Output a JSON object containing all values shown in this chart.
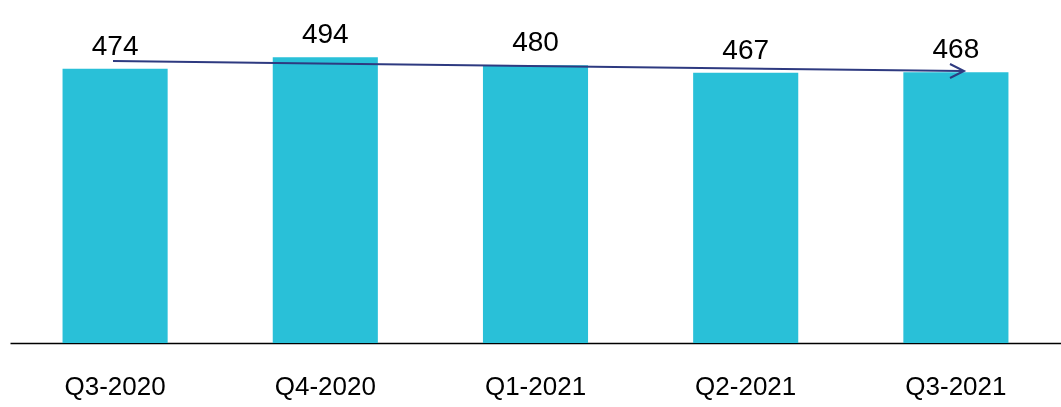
{
  "chart_data": {
    "type": "bar",
    "categories": [
      "Q3-2020",
      "Q4-2020",
      "Q1-2021",
      "Q2-2021",
      "Q3-2021"
    ],
    "values": [
      474,
      494,
      480,
      467,
      468
    ],
    "color": "#29c0d8",
    "data_labels": true
  }
}
